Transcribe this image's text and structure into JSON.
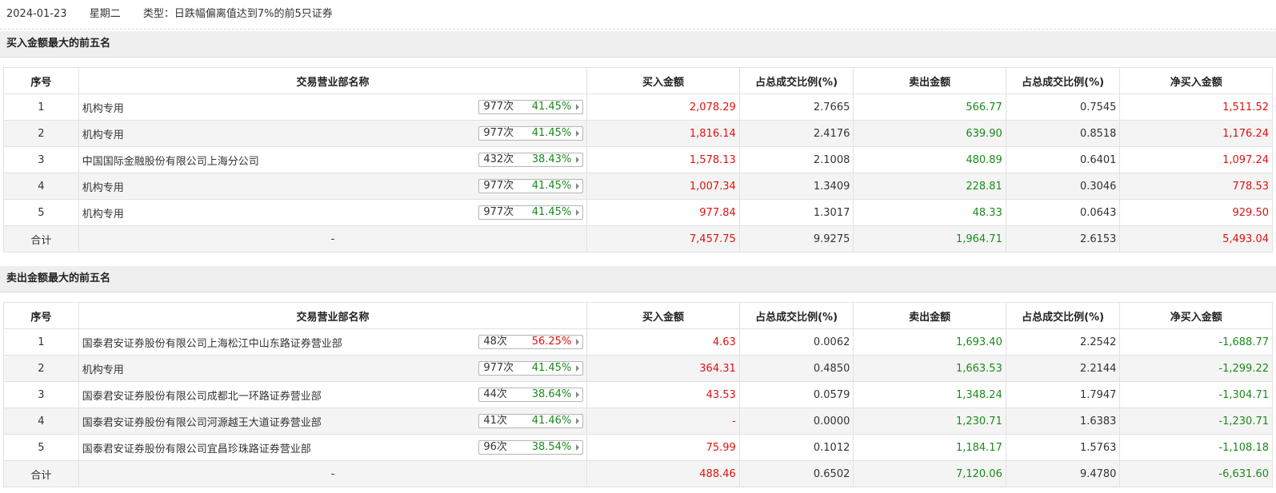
{
  "header": {
    "date": "2024-01-23",
    "weekday": "星期二",
    "type_text": "类型：日跌幅偏离值达到7%的前5只证券"
  },
  "columns": [
    "序号",
    "交易营业部名称",
    "买入金额",
    "占总成交比例(%)",
    "卖出金额",
    "占总成交比例(%)",
    "净买入金额"
  ],
  "buy_section": {
    "title": "买入金额最大的前五名",
    "rows": [
      {
        "idx": "1",
        "name": "机构专用",
        "count": "977次",
        "pct": "41.45%",
        "pct_color": "green",
        "buy": "2,078.29",
        "buy_ratio": "2.7665",
        "sell": "566.77",
        "sell_ratio": "0.7545",
        "net": "1,511.52",
        "net_color": "red"
      },
      {
        "idx": "2",
        "name": "机构专用",
        "count": "977次",
        "pct": "41.45%",
        "pct_color": "green",
        "buy": "1,816.14",
        "buy_ratio": "2.4176",
        "sell": "639.90",
        "sell_ratio": "0.8518",
        "net": "1,176.24",
        "net_color": "red"
      },
      {
        "idx": "3",
        "name": "中国国际金融股份有限公司上海分公司",
        "count": "432次",
        "pct": "38.43%",
        "pct_color": "green",
        "buy": "1,578.13",
        "buy_ratio": "2.1008",
        "sell": "480.89",
        "sell_ratio": "0.6401",
        "net": "1,097.24",
        "net_color": "red"
      },
      {
        "idx": "4",
        "name": "机构专用",
        "count": "977次",
        "pct": "41.45%",
        "pct_color": "green",
        "buy": "1,007.34",
        "buy_ratio": "1.3409",
        "sell": "228.81",
        "sell_ratio": "0.3046",
        "net": "778.53",
        "net_color": "red"
      },
      {
        "idx": "5",
        "name": "机构专用",
        "count": "977次",
        "pct": "41.45%",
        "pct_color": "green",
        "buy": "977.84",
        "buy_ratio": "1.3017",
        "sell": "48.33",
        "sell_ratio": "0.0643",
        "net": "929.50",
        "net_color": "red"
      }
    ],
    "total": {
      "label": "合计",
      "name": "-",
      "buy": "7,457.75",
      "buy_ratio": "9.9275",
      "sell": "1,964.71",
      "sell_ratio": "2.6153",
      "net": "5,493.04",
      "net_color": "red"
    }
  },
  "sell_section": {
    "title": "卖出金额最大的前五名",
    "rows": [
      {
        "idx": "1",
        "name": "国泰君安证券股份有限公司上海松江中山东路证券营业部",
        "count": "48次",
        "pct": "56.25%",
        "pct_color": "red",
        "buy": "4.63",
        "buy_ratio": "0.0062",
        "sell": "1,693.40",
        "sell_ratio": "2.2542",
        "net": "-1,688.77",
        "net_color": "green"
      },
      {
        "idx": "2",
        "name": "机构专用",
        "count": "977次",
        "pct": "41.45%",
        "pct_color": "green",
        "buy": "364.31",
        "buy_ratio": "0.4850",
        "sell": "1,663.53",
        "sell_ratio": "2.2144",
        "net": "-1,299.22",
        "net_color": "green"
      },
      {
        "idx": "3",
        "name": "国泰君安证券股份有限公司成都北一环路证券营业部",
        "count": "44次",
        "pct": "38.64%",
        "pct_color": "green",
        "buy": "43.53",
        "buy_ratio": "0.0579",
        "sell": "1,348.24",
        "sell_ratio": "1.7947",
        "net": "-1,304.71",
        "net_color": "green"
      },
      {
        "idx": "4",
        "name": "国泰君安证券股份有限公司河源越王大道证券营业部",
        "count": "41次",
        "pct": "41.46%",
        "pct_color": "green",
        "buy": "-",
        "buy_ratio": "0.0000",
        "sell": "1,230.71",
        "sell_ratio": "1.6383",
        "net": "-1,230.71",
        "net_color": "green"
      },
      {
        "idx": "5",
        "name": "国泰君安证券股份有限公司宜昌珍珠路证券营业部",
        "count": "96次",
        "pct": "38.54%",
        "pct_color": "green",
        "buy": "75.99",
        "buy_ratio": "0.1012",
        "sell": "1,184.17",
        "sell_ratio": "1.5763",
        "net": "-1,108.18",
        "net_color": "green"
      }
    ],
    "total": {
      "label": "合计",
      "name": "-",
      "buy": "488.46",
      "buy_ratio": "0.6502",
      "sell": "7,120.06",
      "sell_ratio": "9.4780",
      "net": "-6,631.60",
      "net_color": "green"
    }
  }
}
